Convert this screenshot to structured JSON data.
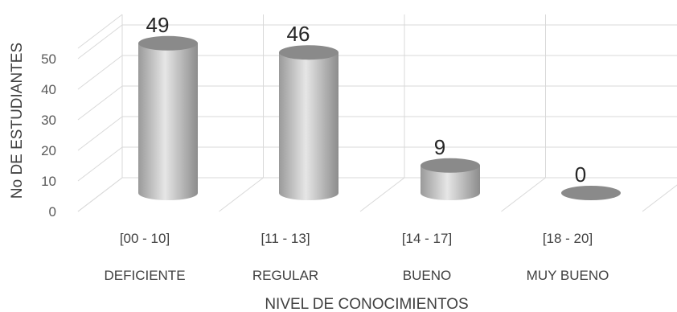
{
  "chart_data": {
    "type": "bar",
    "style": "3d-cylinder",
    "categories": [
      "[00 - 10]",
      "[11 - 13]",
      "[14 - 17]",
      "[18 - 20]"
    ],
    "category_groups": [
      "DEFICIENTE",
      "REGULAR",
      "BUENO",
      "MUY BUENO"
    ],
    "values": [
      49,
      46,
      9,
      0
    ],
    "data_labels": [
      "49",
      "46",
      "9",
      "0"
    ],
    "xlabel": "NIVEL DE CONOCIMIENTOS",
    "ylabel": "No DE ESTUDIANTES",
    "ylim": [
      0,
      50
    ],
    "yticks": [
      0,
      10,
      20,
      30,
      40,
      50
    ],
    "grid": true,
    "colors": {
      "bar_light": "#dcdcdc",
      "bar_dark": "#8c8c8c",
      "bar_top": "#8a8a8a",
      "grid": "#d9d9d9"
    }
  }
}
